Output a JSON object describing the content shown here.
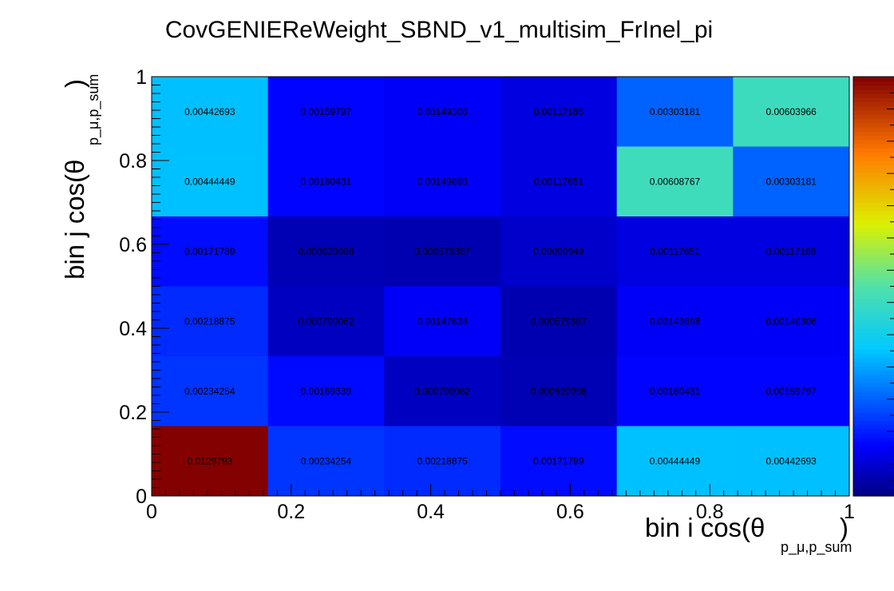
{
  "chart_data": {
    "type": "heatmap",
    "title": "CovGENIEReWeight_SBND_v1_multisim_FrInel_pi",
    "xlabel": "bin i cos(θ",
    "xlabel_sub": "p_μ,p_sum",
    "ylabel": "bin j cos(θ",
    "ylabel_sub": "p_μ,p_sum",
    "xlim": [
      0,
      1
    ],
    "ylim": [
      0,
      1
    ],
    "x_ticks": [
      "0",
      "0.2",
      "0.4",
      "0.6",
      "0.8",
      "1"
    ],
    "x_tick_values": [
      0,
      0.2,
      0.4,
      0.6,
      0.8,
      1
    ],
    "y_ticks": [
      "0",
      "0.2",
      "0.4",
      "0.6",
      "0.8",
      "1"
    ],
    "y_tick_values": [
      0,
      0.2,
      0.4,
      0.6,
      0.8,
      1
    ],
    "n_bins_x": 6,
    "n_bins_y": 6,
    "z_range": [
      0,
      0.013
    ],
    "colormap": "jet",
    "palette": "z-color-bar",
    "values_rows_top_to_bottom": [
      [
        0.00442693,
        0.00159797,
        0.00149306,
        0.00117186,
        0.00303181,
        0.00603966
      ],
      [
        0.00444449,
        0.00160431,
        0.00149898,
        0.00117651,
        0.00608767,
        0.00303181
      ],
      [
        0.00171789,
        0.000620098,
        0.000579387,
        0.00090949,
        0.00117651,
        0.00117186
      ],
      [
        0.00218875,
        0.000790062,
        0.00147638,
        0.000579387,
        0.00149898,
        0.00149306
      ],
      [
        0.00234254,
        0.00169339,
        0.000790062,
        0.000620098,
        0.00160431,
        0.00159797
      ],
      [
        0.0129793,
        0.00234254,
        0.00218875,
        0.00171789,
        0.00444449,
        0.00442693
      ]
    ],
    "labels_rows_top_to_bottom": [
      [
        "0.00442693",
        "0.00159797",
        "0.00149306",
        "0.00117186",
        "0.00303181",
        "0.00603966"
      ],
      [
        "0.00444449",
        "0.00160431",
        "0.00149898",
        "0.00117651",
        "0.00608767",
        "0.00303181"
      ],
      [
        "0.00171789",
        "0.000620098",
        "0.000579387",
        "0.00090949",
        "0.00117651",
        "0.00117186"
      ],
      [
        "0.00218875",
        "0.000790062",
        "0.00147638",
        "0.000579387",
        "0.00149898",
        "0.00149306"
      ],
      [
        "0.00234254",
        "0.00169339",
        "0.000790062",
        "0.000620098",
        "0.00160431",
        "0.00159797"
      ],
      [
        "0.0129793",
        "0.00234254",
        "0.00218875",
        "0.00171789",
        "0.00444449",
        "0.00442693"
      ]
    ]
  }
}
